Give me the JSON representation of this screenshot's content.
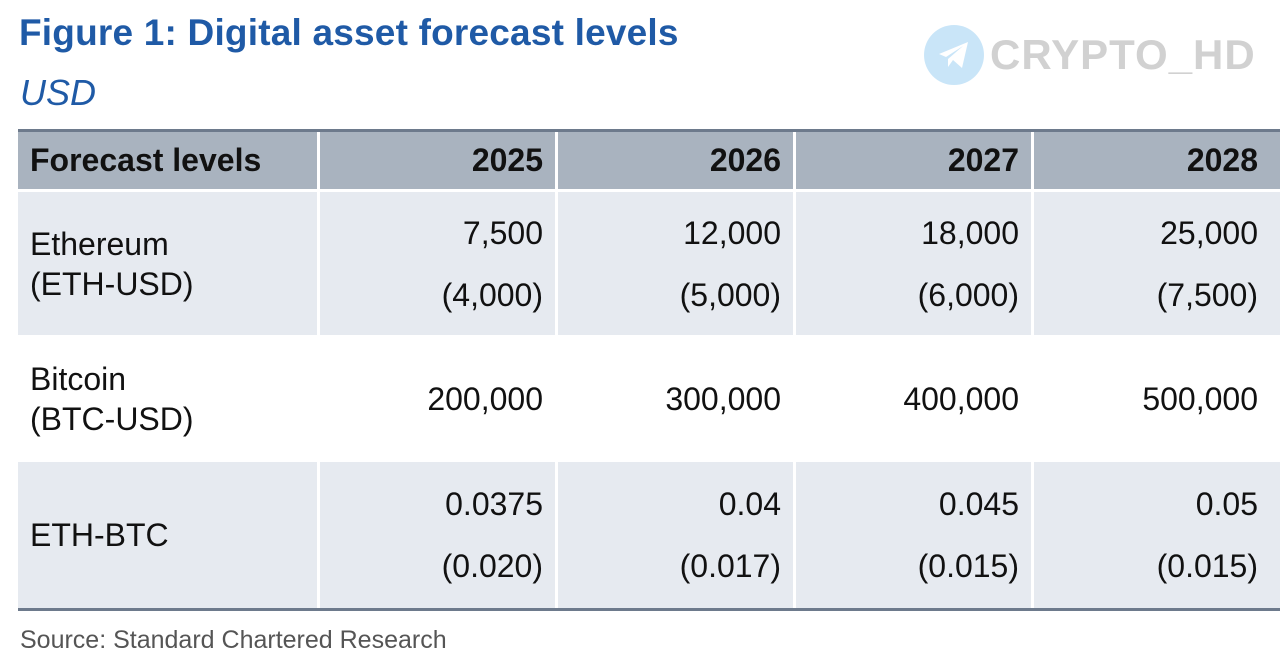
{
  "header": {
    "title": "Figure 1: Digital asset forecast levels",
    "subtitle": "USD"
  },
  "watermark": {
    "text": "CRYPTO_HD",
    "icon": "telegram-plane-icon",
    "color": "#8ac7f0"
  },
  "table": {
    "columns": [
      "Forecast levels",
      "2025",
      "2026",
      "2027",
      "2028"
    ],
    "rows": [
      {
        "label_line1": "Ethereum",
        "label_line2": "(ETH-USD)",
        "values": [
          "7,500",
          "12,000",
          "18,000",
          "25,000"
        ],
        "sub_values": [
          "(4,000)",
          "(5,000)",
          "(6,000)",
          "(7,500)"
        ]
      },
      {
        "label_line1": "Bitcoin",
        "label_line2": "(BTC-USD)",
        "values": [
          "200,000",
          "300,000",
          "400,000",
          "500,000"
        ]
      },
      {
        "label_line1": "ETH-BTC",
        "values": [
          "0.0375",
          "0.04",
          "0.045",
          "0.05"
        ],
        "sub_values": [
          "(0.020)",
          "(0.017)",
          "(0.015)",
          "(0.015)"
        ]
      }
    ]
  },
  "footer": {
    "source": "Source: Standard Chartered Research"
  },
  "colors": {
    "title": "#1f5aa6",
    "header_bg": "#a9b3bf",
    "band_bg": "#e6eaf0",
    "rule": "#6d7a8c"
  }
}
